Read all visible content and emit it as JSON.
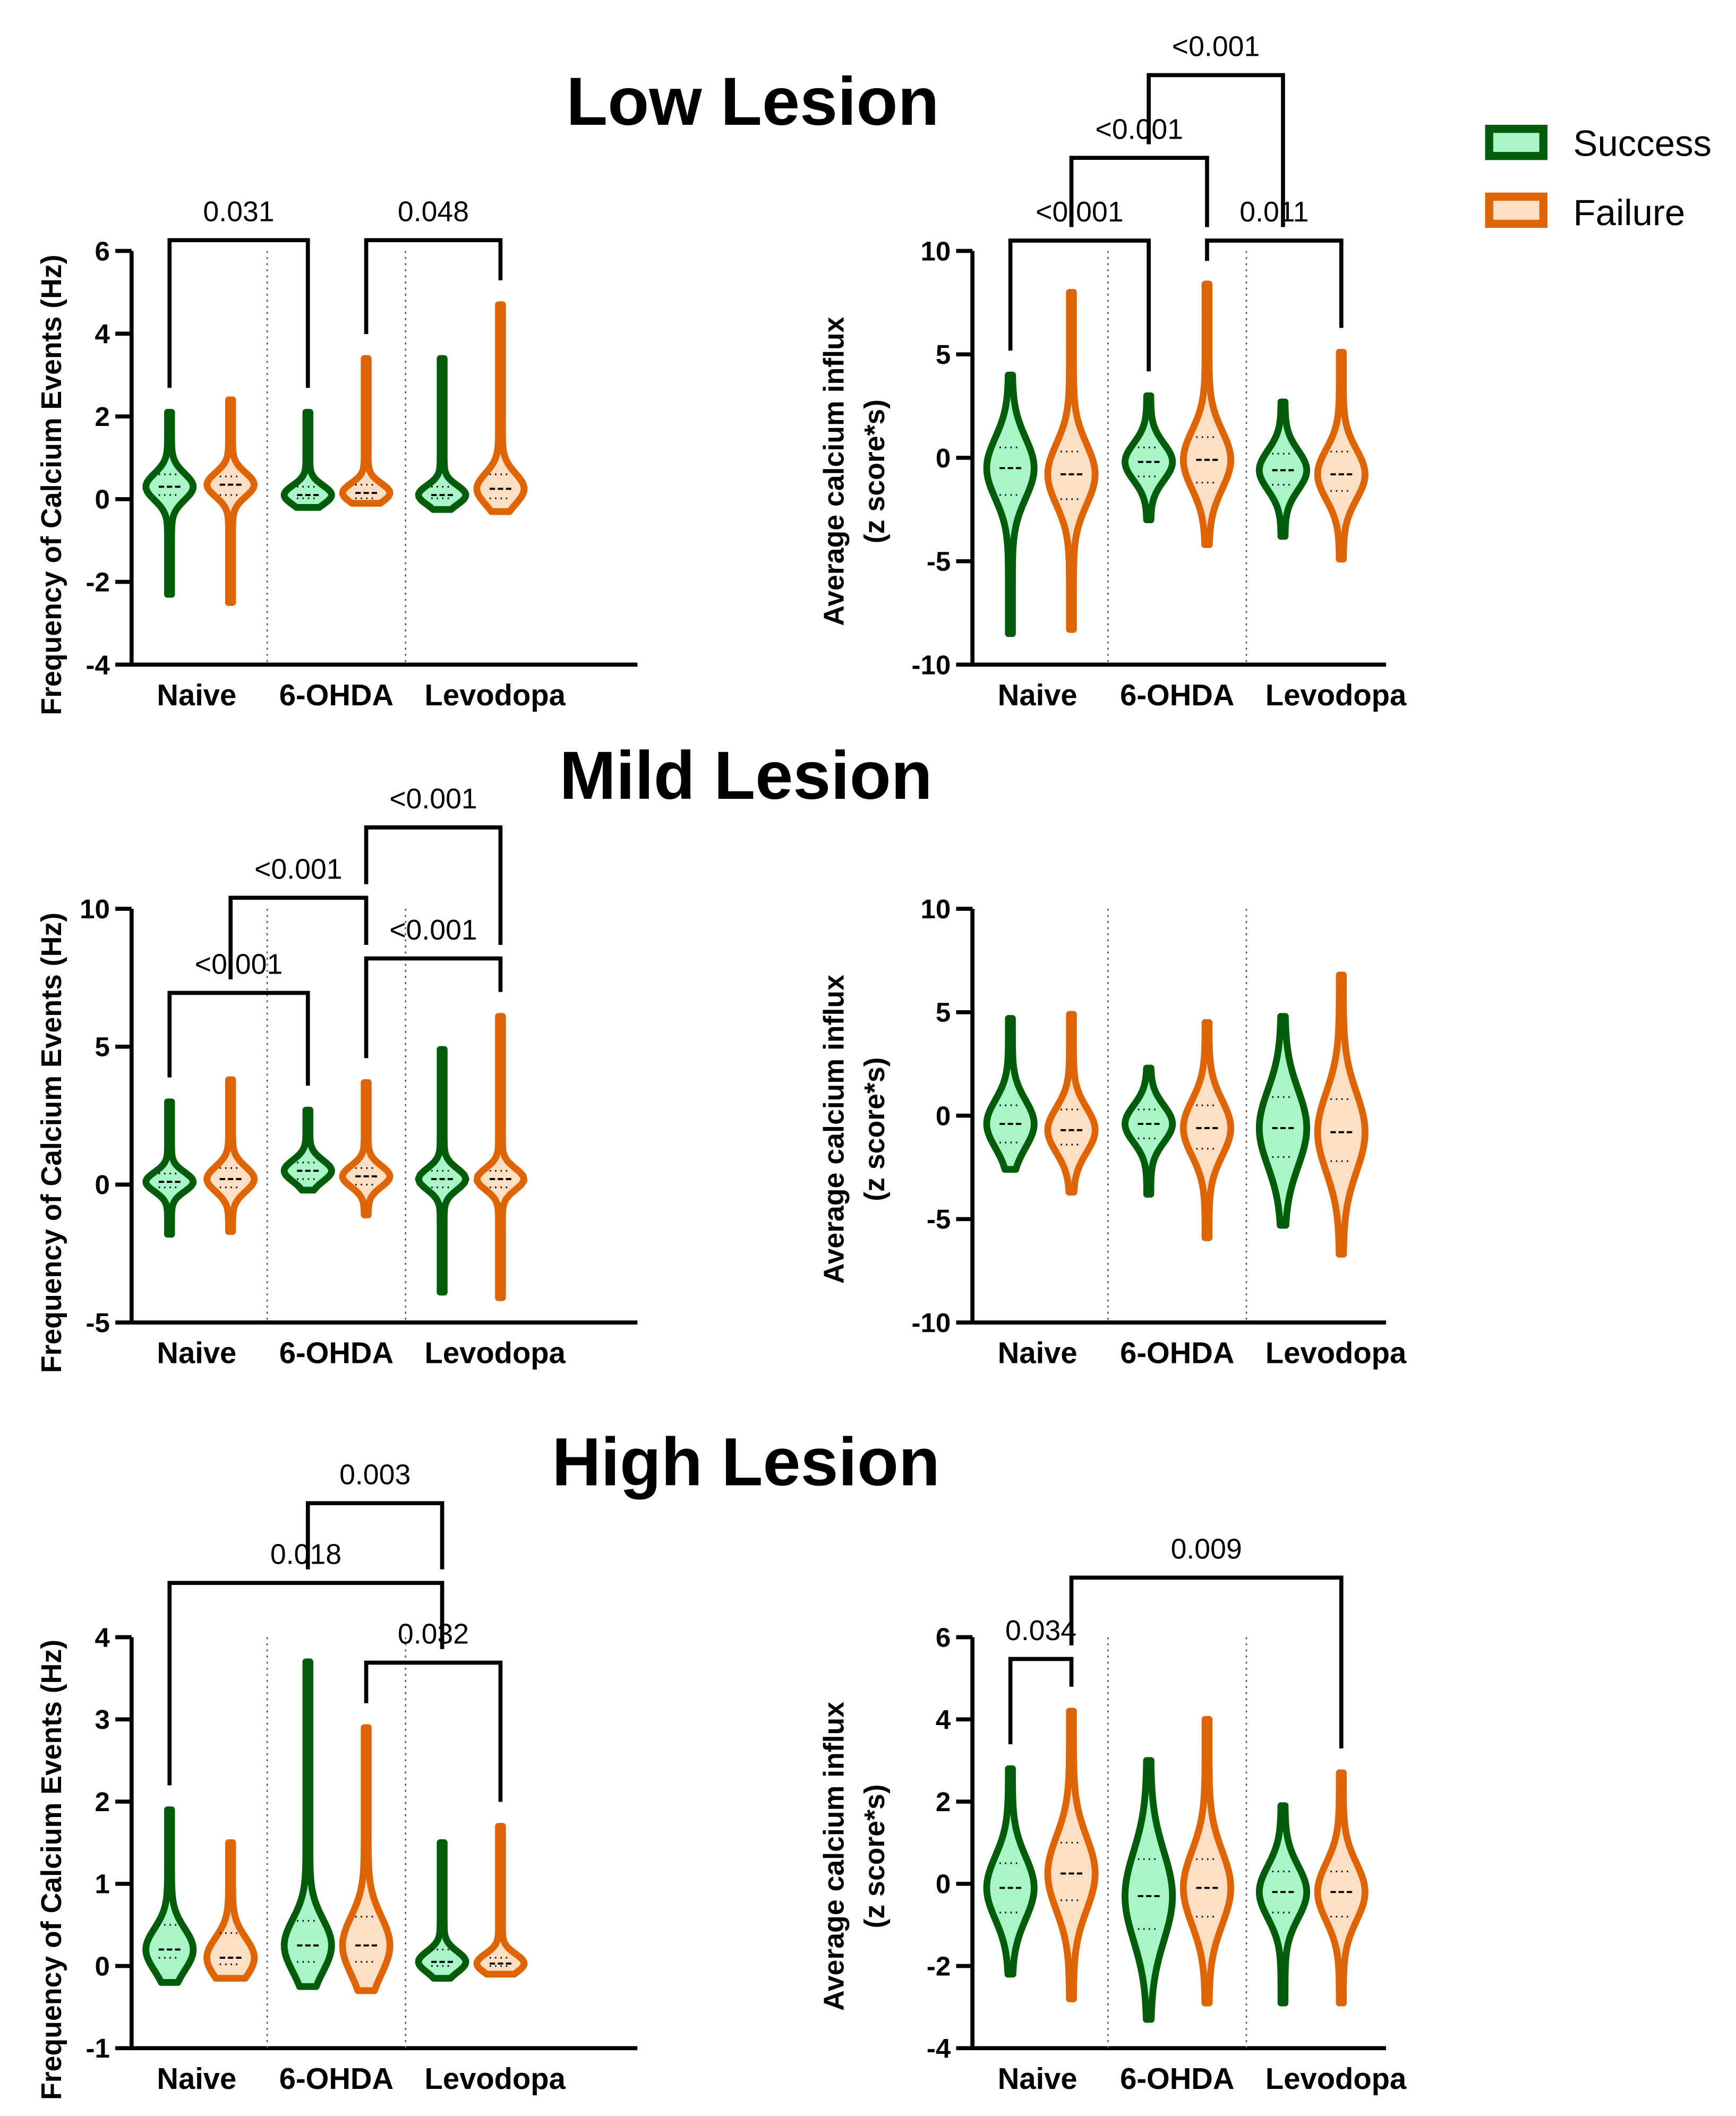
{
  "legend": [
    {
      "label": "Success",
      "stroke": "#025c0a",
      "fill": "#a8f5c8"
    },
    {
      "label": "Failure",
      "stroke": "#df6405",
      "fill": "#ffdfc4"
    }
  ],
  "chart_data": {
    "type": "violin",
    "row_titles": [
      "Low Lesion",
      "Mild Lesion",
      "High Lesion"
    ],
    "categories": [
      "Naive",
      "6-OHDA",
      "Levodopa"
    ],
    "groups_order": [
      "Naive-Success",
      "Naive-Failure",
      "6-OHDA-Success",
      "6-OHDA-Failure",
      "Levodopa-Success",
      "Levodopa-Failure"
    ],
    "panels": [
      {
        "row": 0,
        "col": 0,
        "ylabel": [
          "Frequency of Calcium Events (Hz)"
        ],
        "ylim": [
          -4,
          6
        ],
        "yticks": [
          "-4",
          "-2",
          "0",
          "2",
          "4",
          "6"
        ],
        "violins": [
          [
            -2.3,
            2.1,
            0.3,
            0.1,
            0.6
          ],
          [
            -2.5,
            2.4,
            0.35,
            0.1,
            0.55
          ],
          [
            -0.2,
            2.1,
            0.1,
            0.02,
            0.3
          ],
          [
            -0.1,
            3.4,
            0.15,
            0.02,
            0.35
          ],
          [
            -0.25,
            3.4,
            0.1,
            0.02,
            0.3
          ],
          [
            -0.3,
            4.7,
            0.25,
            0.02,
            0.6
          ]
        ],
        "comparisons": [
          {
            "from": 0,
            "to": 2,
            "p": "0.031",
            "y": 6.26
          },
          {
            "from": 3,
            "to": 5,
            "p": "0.048",
            "y": 6.26
          }
        ]
      },
      {
        "row": 0,
        "col": 1,
        "ylabel": [
          "Average calcium influx",
          "(z score*s)"
        ],
        "ylim": [
          -10,
          10
        ],
        "yticks": [
          "-10",
          "-5",
          "0",
          "5",
          "10"
        ],
        "violins": [
          [
            -8.5,
            4,
            -0.5,
            -1.8,
            0.5
          ],
          [
            -8.3,
            8,
            -0.8,
            -2,
            0.3
          ],
          [
            -3,
            3,
            -0.2,
            -0.9,
            0.5
          ],
          [
            -4.2,
            8.4,
            -0.1,
            -1.2,
            1
          ],
          [
            -3.8,
            2.7,
            -0.6,
            -1.3,
            0.2
          ],
          [
            -4.9,
            5.1,
            -0.8,
            -1.6,
            0.3
          ]
        ],
        "comparisons": [
          {
            "from": 0,
            "to": 2,
            "p": "<0.001",
            "y": 10.5
          },
          {
            "from": 3,
            "to": 5,
            "p": "0.011",
            "y": 10.5
          },
          {
            "from": 1,
            "to": 3,
            "p": "<0.001",
            "y": 14.5
          },
          {
            "from": 2,
            "to": 4,
            "p": "<0.001",
            "y": 18.5
          }
        ]
      },
      {
        "row": 1,
        "col": 0,
        "ylabel": [
          "Frequency of Calcium Events (Hz)"
        ],
        "ylim": [
          -5,
          10
        ],
        "yticks": [
          "-5",
          "0",
          "5",
          "10"
        ],
        "violins": [
          [
            -1.8,
            3,
            0.1,
            -0.1,
            0.4
          ],
          [
            -1.7,
            3.8,
            0.2,
            -0.1,
            0.6
          ],
          [
            -0.2,
            2.7,
            0.5,
            0.2,
            0.8
          ],
          [
            -1.1,
            3.7,
            0.3,
            0,
            0.6
          ],
          [
            -3.9,
            4.9,
            0.2,
            -0.1,
            0.5
          ],
          [
            -4.1,
            6.1,
            0.2,
            -0.1,
            0.5
          ]
        ],
        "comparisons": [
          {
            "from": 0,
            "to": 2,
            "p": "<0.001",
            "y": 6.95
          },
          {
            "from": 3,
            "to": 5,
            "p": "<0.001",
            "y": 8.2
          },
          {
            "from": 1,
            "to": 3,
            "p": "<0.001",
            "y": 10.4
          },
          {
            "from": 3,
            "to": 5,
            "p": "<0.001",
            "y": 12.95
          }
        ]
      },
      {
        "row": 1,
        "col": 1,
        "ylabel": [
          "Average calcium influx",
          "(z score*s)"
        ],
        "ylim": [
          -10,
          10
        ],
        "yticks": [
          "-10",
          "-5",
          "0",
          "5",
          "10"
        ],
        "violins": [
          [
            -2.6,
            4.7,
            -0.4,
            -1.3,
            0.5
          ],
          [
            -3.7,
            4.9,
            -0.7,
            -1.4,
            0.3
          ],
          [
            -3.8,
            2.3,
            -0.4,
            -1.1,
            0.3
          ],
          [
            -5.9,
            4.5,
            -0.6,
            -1.6,
            0.5
          ],
          [
            -5.3,
            4.8,
            -0.6,
            -2,
            0.9
          ],
          [
            -6.7,
            6.8,
            -0.8,
            -2.2,
            0.8
          ]
        ],
        "comparisons": []
      },
      {
        "row": 2,
        "col": 0,
        "ylabel": [
          "Frequency of Calcium Events (Hz)"
        ],
        "ylim": [
          -1,
          4
        ],
        "yticks": [
          "-1",
          "0",
          "1",
          "2",
          "3",
          "4"
        ],
        "violins": [
          [
            -0.2,
            1.9,
            0.2,
            0.1,
            0.5
          ],
          [
            -0.15,
            1.5,
            0.1,
            0.02,
            0.4
          ],
          [
            -0.25,
            3.7,
            0.25,
            0.05,
            0.55
          ],
          [
            -0.3,
            2.9,
            0.25,
            0.05,
            0.6
          ],
          [
            -0.15,
            1.5,
            0.05,
            0,
            0.2
          ],
          [
            -0.1,
            1.7,
            0.03,
            0,
            0.1
          ]
        ],
        "comparisons": [
          {
            "from": 3,
            "to": 5,
            "p": "0.032",
            "y": 3.69
          },
          {
            "from": 0,
            "to": 4,
            "p": "0.018",
            "y": 4.66
          },
          {
            "from": 2,
            "to": 4,
            "p": "0.003",
            "y": 5.63
          }
        ]
      },
      {
        "row": 2,
        "col": 1,
        "ylabel": [
          "Average calcium influx",
          "(z score*s)"
        ],
        "ylim": [
          -4,
          6
        ],
        "yticks": [
          "-4",
          "-2",
          "0",
          "2",
          "4",
          "6"
        ],
        "violins": [
          [
            -2.2,
            2.8,
            -0.1,
            -0.7,
            0.5
          ],
          [
            -2.8,
            4.2,
            0.25,
            -0.4,
            1
          ],
          [
            -3.3,
            3,
            -0.3,
            -1.1,
            0.6
          ],
          [
            -2.9,
            4,
            -0.1,
            -0.8,
            0.6
          ],
          [
            -2.9,
            1.9,
            -0.2,
            -0.7,
            0.3
          ],
          [
            -2.9,
            2.7,
            -0.2,
            -0.8,
            0.3
          ]
        ],
        "comparisons": [
          {
            "from": 0,
            "to": 1,
            "p": "0.034",
            "y": 5.47
          },
          {
            "from": 1,
            "to": 5,
            "p": "0.009",
            "y": 7.45
          }
        ]
      }
    ],
    "violin_fields": [
      "min",
      "max",
      "median",
      "q1",
      "q3"
    ]
  }
}
